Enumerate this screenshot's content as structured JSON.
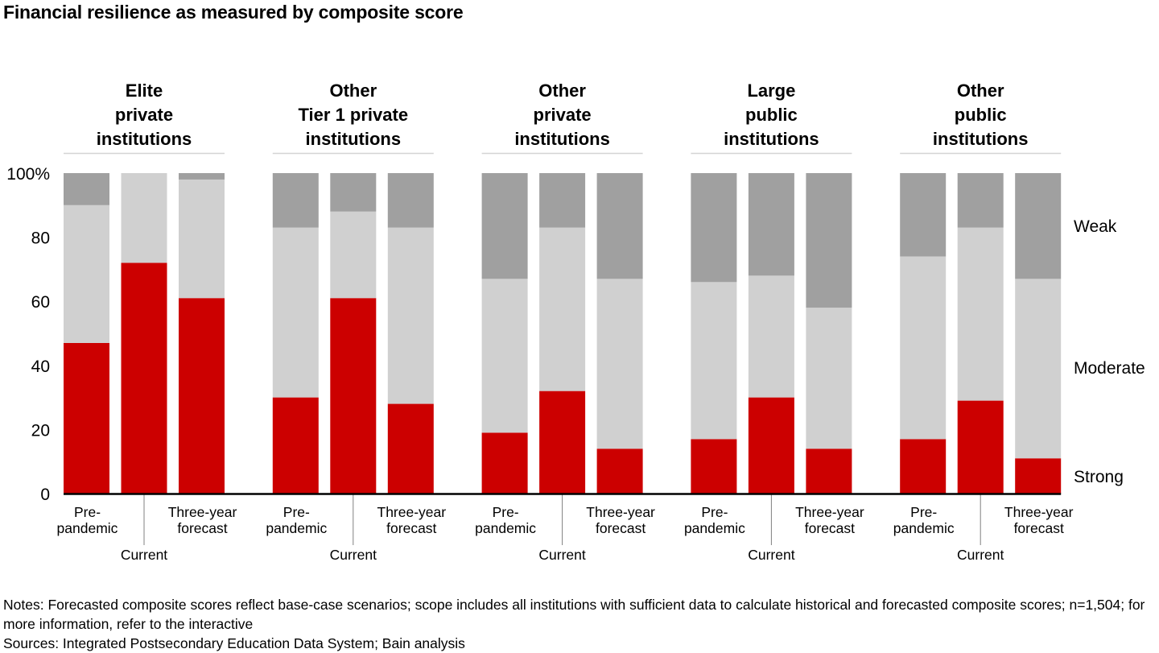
{
  "chart_data": {
    "type": "bar",
    "stacked": true,
    "title": "Financial resilience as measured by composite score",
    "xlabel": "",
    "ylabel": "",
    "ylim": [
      0,
      100
    ],
    "y_ticks": [
      "0",
      "20",
      "40",
      "60",
      "80",
      "100%"
    ],
    "y_tick_values": [
      0,
      20,
      40,
      60,
      80,
      100
    ],
    "bar_labels": [
      "Pre-\npandemic",
      "Current",
      "Three-year\nforecast"
    ],
    "groups": [
      {
        "name": "Elite\nprivate\ninstitutions"
      },
      {
        "name": "Other\nTier 1 private\ninstitutions"
      },
      {
        "name": "Other\nprivate\ninstitutions"
      },
      {
        "name": "Large\npublic\ninstitutions"
      },
      {
        "name": "Other\npublic\ninstitutions"
      }
    ],
    "series": [
      {
        "name": "Strong",
        "color": "#CC0000",
        "values": [
          [
            47,
            72,
            61
          ],
          [
            30,
            61,
            28
          ],
          [
            19,
            32,
            14
          ],
          [
            17,
            30,
            14
          ],
          [
            17,
            29,
            11
          ]
        ]
      },
      {
        "name": "Moderate",
        "color": "#D0D0D0",
        "values": [
          [
            43,
            28,
            37
          ],
          [
            53,
            27,
            55
          ],
          [
            48,
            51,
            53
          ],
          [
            49,
            38,
            44
          ],
          [
            57,
            54,
            56
          ]
        ]
      },
      {
        "name": "Weak",
        "color": "#A0A0A0",
        "values": [
          [
            10,
            0,
            2
          ],
          [
            17,
            12,
            17
          ],
          [
            33,
            17,
            33
          ],
          [
            34,
            32,
            42
          ],
          [
            26,
            17,
            33
          ]
        ]
      }
    ],
    "legend": {
      "placement": "right",
      "entries": [
        "Weak",
        "Moderate",
        "Strong"
      ]
    },
    "grid": false
  },
  "notes": {
    "line1": "Notes: Forecasted composite scores reflect base-case scenarios; scope includes all institutions with sufficient data to calculate historical and forecasted composite scores; n=1,504; for more information, refer to the interactive",
    "sources": "Sources: Integrated Postsecondary Education Data System; Bain analysis"
  }
}
